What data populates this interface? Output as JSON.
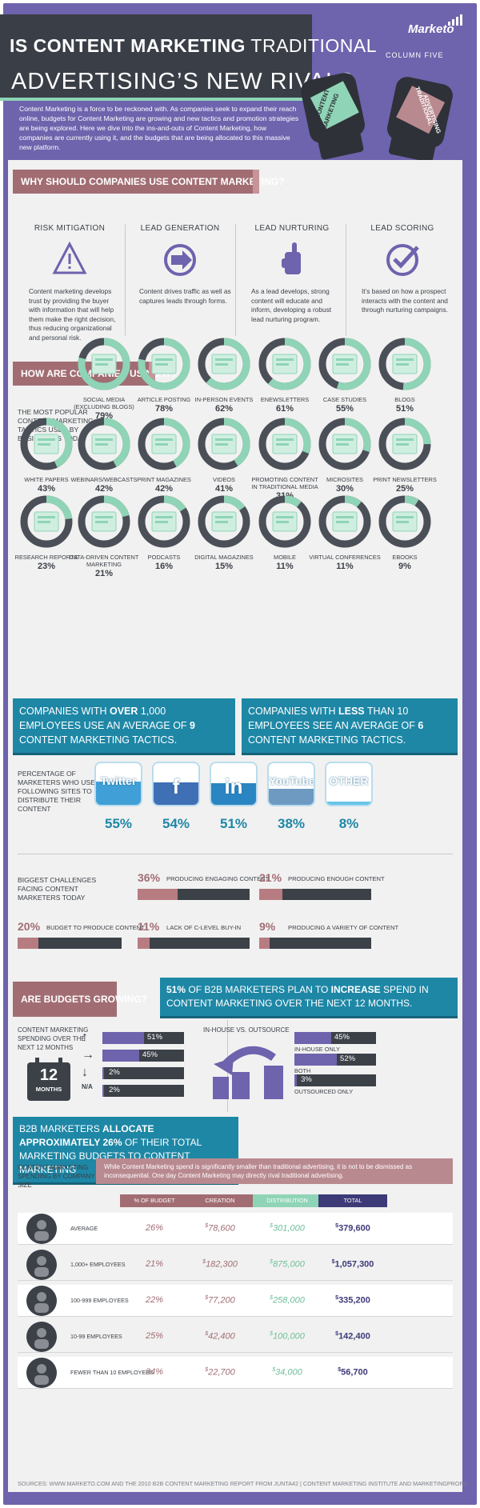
{
  "header": {
    "title_part1_bold": "IS CONTENT MARKETING",
    "title_part1_rest": " TRADITIONAL",
    "title_line2": "ADVERTISING’S NEW RIVAL?",
    "brand": "Marketo",
    "partner": "COLUMN FIVE",
    "glove_left": "CONTENT MARKETING",
    "glove_right": "TRADITIONAL ADVERTISING",
    "intro": "Content Marketing is a force to be reckoned with. As companies seek to expand their reach online, budgets for Content Marketing are growing and new tactics and promotion strategies are being explored. Here we dive into the ins-and-outs of Content Marketing, how companies are currently using it, and the budgets that are being allocated to this massive new platform."
  },
  "why": {
    "heading": "WHY SHOULD COMPANIES USE CONTENT MARKETING?",
    "items": [
      {
        "title": "RISK MITIGATION",
        "icon": "warning-icon",
        "text": "Content marketing develops trust by providing the buyer with information that will help them make the right decision, thus reducing organizational and personal risk."
      },
      {
        "title": "LEAD GENERATION",
        "icon": "arrow-circle-icon",
        "text": "Content drives traffic as well as captures leads through forms."
      },
      {
        "title": "LEAD NURTURING",
        "icon": "hand-icon",
        "text": "As a lead develops, strong content will educate and inform, developing a robust lead nurturing program."
      },
      {
        "title": "LEAD SCORING",
        "icon": "checkmark-icon",
        "text": "It’s based on how a prospect interacts with the content and through nurturing campaigns."
      }
    ]
  },
  "how": {
    "heading": "HOW ARE COMPANIES USING IT?",
    "tactics_title": "THE MOST POPULAR CONTENT MARKETING TACTICS USED BY BUSINESSES TODAY"
  },
  "blue_boxes": {
    "left": {
      "pre": "COMPANIES WITH ",
      "bold1": "OVER",
      "mid": " 1,000 EMPLOYEES USE AN AVERAGE OF ",
      "bold2": "9",
      "post": " CONTENT MARKETING TACTICS."
    },
    "right": {
      "pre": "COMPANIES WITH ",
      "bold1": "LESS",
      "mid": " THAN 10 EMPLOYEES SEE AN AVERAGE OF ",
      "bold2": "6",
      "post": " CONTENT MARKETING TACTICS."
    }
  },
  "social_title": "PERCENTAGE OF MARKETERS WHO USE THE FOLLOWING SITES TO DISTRIBUTE THEIR CONTENT",
  "challenges_title": "BIGGEST CHALLENGES FACING CONTENT MARKETERS TODAY",
  "budgets": {
    "heading": "ARE BUDGETS GROWING?",
    "banner_pct": "51%",
    "banner_pre": " OF B2B MARKETERS PLAN TO ",
    "banner_bold": "INCREASE",
    "banner_post": " SPEND IN CONTENT  MARKETING OVER THE NEXT 12 MONTHS.",
    "spending_title": "CONTENT MARKETING SPENDING OVER THE NEXT 12 MONTHS",
    "calendar_num": "12",
    "calendar_unit": "MONTHS",
    "inhouse_title": "IN-HOUSE VS. OUTSOURCE"
  },
  "allocation": {
    "banner_pre": "B2B MARKETERS ",
    "banner_bold": "ALLOCATE APPROXIMATELY 26%",
    "banner_post": " OF THEIR TOTAL MARKETING BUDGETS TO CONTENT MARKETING",
    "size_title": "CONTENT MARKETING SPENDING BY COMPANY SIZE",
    "note": "While Content Marketing spend is significantly smaller than traditional advertising, it is not to be dismissed as inconsequential. One day Content Marketing may directly rival traditional advertising."
  },
  "sources": "SOURCES: WWW.MARKETO.COM AND THE 2010 B2B CONTENT MARKETING REPORT FROM JUNTA42 | CONTENT MARKETING INSTITUTE AND MARKETINGPROFS",
  "colors": {
    "purple": "#6e63ad",
    "rose": "#a16d73",
    "mint": "#8fd4b6",
    "teal": "#1e87a6",
    "dark": "#3c4148"
  },
  "chart_data": [
    {
      "type": "pie",
      "name": "tactics",
      "categories": [
        "SOCIAL MEDIA (EXCLUDING BLOGS)",
        "ARTICLE POSTING",
        "IN-PERSON EVENTS",
        "ENEWSLETTERS",
        "CASE STUDIES",
        "BLOGS",
        "WHITE PAPERS",
        "WEBINARS/WEBCASTS",
        "PRINT MAGAZINES",
        "VIDEOS",
        "PROMOTING CONTENT IN TRADITIONAL MEDIA",
        "MICROSITES",
        "PRINT NEWSLETTERS",
        "RESEARCH REPORTS",
        "DATA-DRIVEN CONTENT MARKETING",
        "PODCASTS",
        "DIGITAL MAGAZINES",
        "MOBILE",
        "VIRTUAL CONFERENCES",
        "EBOOKS"
      ],
      "values": [
        79,
        78,
        62,
        61,
        55,
        51,
        43,
        42,
        42,
        41,
        31,
        30,
        25,
        23,
        21,
        16,
        15,
        11,
        11,
        9
      ],
      "labels": [
        "79%",
        "78%",
        "62%",
        "61%",
        "55%",
        "51%",
        "43%",
        "42%",
        "42%",
        "41%",
        "31%",
        "30%",
        "25%",
        "23%",
        "21%",
        "16%",
        "15%",
        "11%",
        "11%",
        "9%"
      ]
    },
    {
      "type": "bar",
      "name": "social",
      "categories": [
        "Twitter",
        "f",
        "in",
        "YouTube",
        "OTHER"
      ],
      "values": [
        55,
        54,
        51,
        38,
        8
      ],
      "labels": [
        "55%",
        "54%",
        "51%",
        "38%",
        "8%"
      ]
    },
    {
      "type": "bar",
      "name": "challenges",
      "categories": [
        "PRODUCING ENGAGING CONTENT",
        "PRODUCING ENOUGH CONTENT",
        "BUDGET TO PRODUCE CONTENT",
        "LACK OF C-LEVEL BUY-IN",
        "PRODUCING A VARIETY OF CONTENT"
      ],
      "values": [
        36,
        21,
        20,
        11,
        9
      ],
      "labels": [
        "36%",
        "21%",
        "20%",
        "11%",
        "9%"
      ]
    },
    {
      "type": "bar",
      "name": "spending",
      "categories": [
        "up",
        "same",
        "down",
        "N/A"
      ],
      "values": [
        51,
        45,
        2,
        2
      ],
      "labels": [
        "51%",
        "45%",
        "2%",
        "2%"
      ],
      "na_label": "N/A"
    },
    {
      "type": "bar",
      "name": "inhouse",
      "categories": [
        "IN-HOUSE ONLY",
        "BOTH",
        "OUTSOURCED ONLY"
      ],
      "values": [
        45,
        52,
        3
      ],
      "labels": [
        "45%",
        "52%",
        "3%"
      ]
    },
    {
      "type": "table",
      "name": "company_size",
      "columns": [
        "% OF BUDGET",
        "CREATION",
        "DISTRIBUTION",
        "TOTAL"
      ],
      "rows": [
        {
          "label": "AVERAGE",
          "pct": "26%",
          "creation": "78,600",
          "distribution": "301,000",
          "total": "379,600"
        },
        {
          "label": "1,000+ EMPLOYEES",
          "pct": "21%",
          "creation": "182,300",
          "distribution": "875,000",
          "total": "1,057,300"
        },
        {
          "label": "100-999 EMPLOYEES",
          "pct": "22%",
          "creation": "77,200",
          "distribution": "258,000",
          "total": "335,200"
        },
        {
          "label": "10-99 EMPLOYEES",
          "pct": "25%",
          "creation": "42,400",
          "distribution": "100,000",
          "total": "142,400"
        },
        {
          "label": "FEWER THAN 10 EMPLOYEES",
          "pct": "34%",
          "creation": "22,700",
          "distribution": "34,000",
          "total": "56,700"
        }
      ],
      "currency": "$"
    }
  ]
}
